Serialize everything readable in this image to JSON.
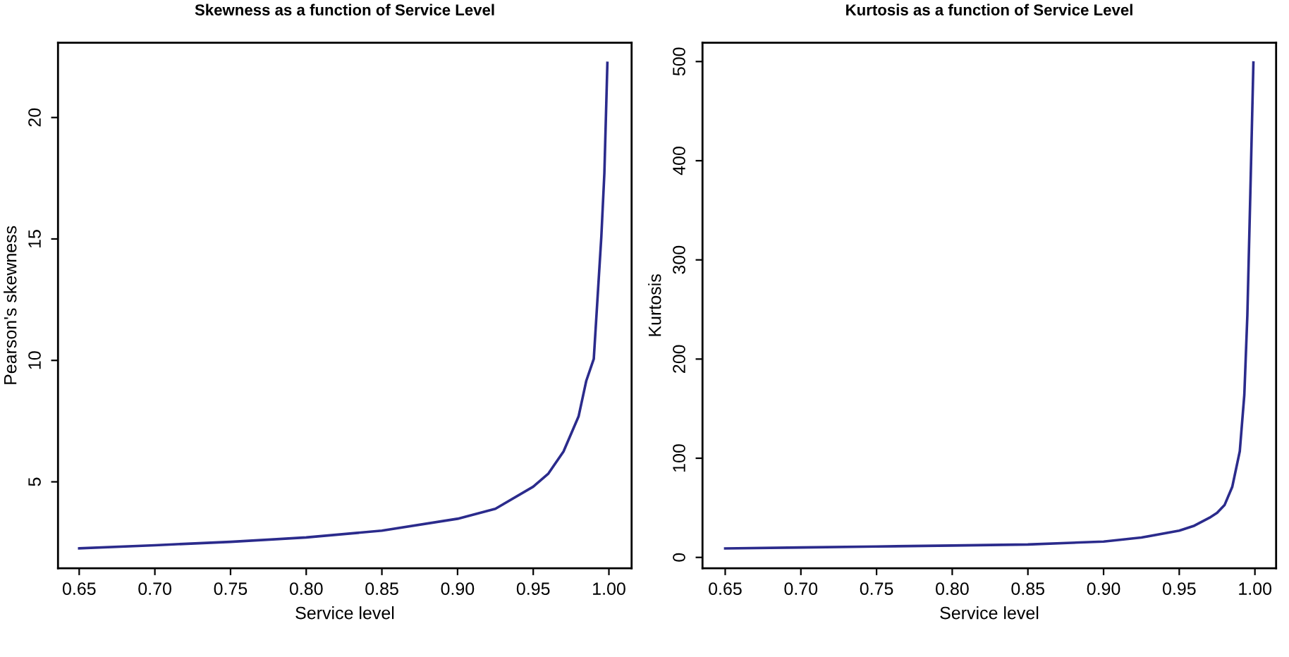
{
  "chart_data": [
    {
      "type": "line",
      "title": "Skewness as a function of Service Level",
      "xlabel": "Service level",
      "ylabel": "Pearson's skewness",
      "x": [
        0.65,
        0.7,
        0.75,
        0.8,
        0.85,
        0.9,
        0.925,
        0.95,
        0.96,
        0.97,
        0.98,
        0.985,
        0.99,
        0.995,
        0.997,
        0.999
      ],
      "series": [
        {
          "color": "#2b2b8c",
          "values": [
            2.26,
            2.39,
            2.53,
            2.71,
            2.99,
            3.48,
            3.89,
            4.8,
            5.34,
            6.25,
            7.7,
            9.15,
            10.06,
            15.1,
            17.7,
            22.25
          ]
        }
      ],
      "xlim": [
        0.636,
        1.015
      ],
      "ylim": [
        1.44,
        23.08
      ],
      "xticks": [
        0.65,
        {
          "value": 0.7,
          "label": "0.70"
        },
        0.75,
        {
          "value": 0.8,
          "label": "0.80"
        },
        0.85,
        {
          "value": 0.9,
          "label": "0.90"
        },
        0.95,
        {
          "value": 1.0,
          "label": "1.00"
        }
      ],
      "yticks": [
        5,
        10,
        15,
        20
      ],
      "grid": false
    },
    {
      "type": "line",
      "title": "Kurtosis as a function of Service Level",
      "xlabel": "Service level",
      "ylabel": "Kurtosis",
      "x": [
        0.65,
        0.7,
        0.75,
        0.8,
        0.85,
        0.9,
        0.925,
        0.95,
        0.96,
        0.97,
        0.975,
        0.98,
        0.985,
        0.99,
        0.993,
        0.995,
        0.997,
        0.999
      ],
      "series": [
        {
          "color": "#2b2b8c",
          "values": [
            9,
            10,
            11,
            12,
            13,
            16,
            20,
            27,
            32,
            40,
            45,
            53,
            71,
            107,
            164,
            244,
            369,
            499
          ]
        }
      ],
      "xlim": [
        0.635,
        1.014
      ],
      "ylim": [
        -11,
        519
      ],
      "xticks": [
        0.65,
        {
          "value": 0.7,
          "label": "0.70"
        },
        0.75,
        {
          "value": 0.8,
          "label": "0.80"
        },
        0.85,
        {
          "value": 0.9,
          "label": "0.90"
        },
        0.95,
        {
          "value": 1.0,
          "label": "1.00"
        }
      ],
      "yticks": [
        0,
        100,
        200,
        300,
        400,
        500
      ],
      "grid": false
    }
  ]
}
